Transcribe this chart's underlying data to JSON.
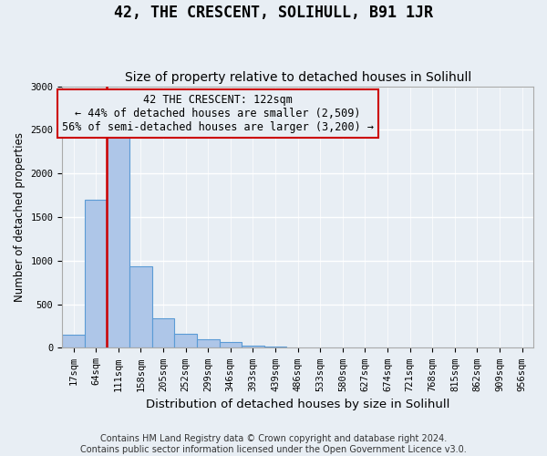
{
  "title": "42, THE CRESCENT, SOLIHULL, B91 1JR",
  "subtitle": "Size of property relative to detached houses in Solihull",
  "xlabel": "Distribution of detached houses by size in Solihull",
  "ylabel": "Number of detached properties",
  "bar_labels": [
    "17sqm",
    "64sqm",
    "111sqm",
    "158sqm",
    "205sqm",
    "252sqm",
    "299sqm",
    "346sqm",
    "393sqm",
    "439sqm",
    "486sqm",
    "533sqm",
    "580sqm",
    "627sqm",
    "674sqm",
    "721sqm",
    "768sqm",
    "815sqm",
    "862sqm",
    "909sqm",
    "956sqm"
  ],
  "bar_values": [
    150,
    1700,
    2420,
    940,
    340,
    165,
    100,
    65,
    30,
    20,
    5,
    5,
    0,
    0,
    0,
    0,
    0,
    0,
    0,
    0,
    0
  ],
  "bar_color": "#aec6e8",
  "bar_edge_color": "#5b9bd5",
  "bg_color": "#e8eef4",
  "grid_color": "#ffffff",
  "vline_color": "#cc0000",
  "annotation_text": "42 THE CRESCENT: 122sqm\n← 44% of detached houses are smaller (2,509)\n56% of semi-detached houses are larger (3,200) →",
  "annotation_box_color": "#cc0000",
  "ylim": [
    0,
    3000
  ],
  "yticks": [
    0,
    500,
    1000,
    1500,
    2000,
    2500,
    3000
  ],
  "footnote": "Contains HM Land Registry data © Crown copyright and database right 2024.\nContains public sector information licensed under the Open Government Licence v3.0.",
  "title_fontsize": 12,
  "subtitle_fontsize": 10,
  "xlabel_fontsize": 9.5,
  "ylabel_fontsize": 8.5,
  "tick_fontsize": 7.5,
  "annotation_fontsize": 8.5,
  "footnote_fontsize": 7
}
